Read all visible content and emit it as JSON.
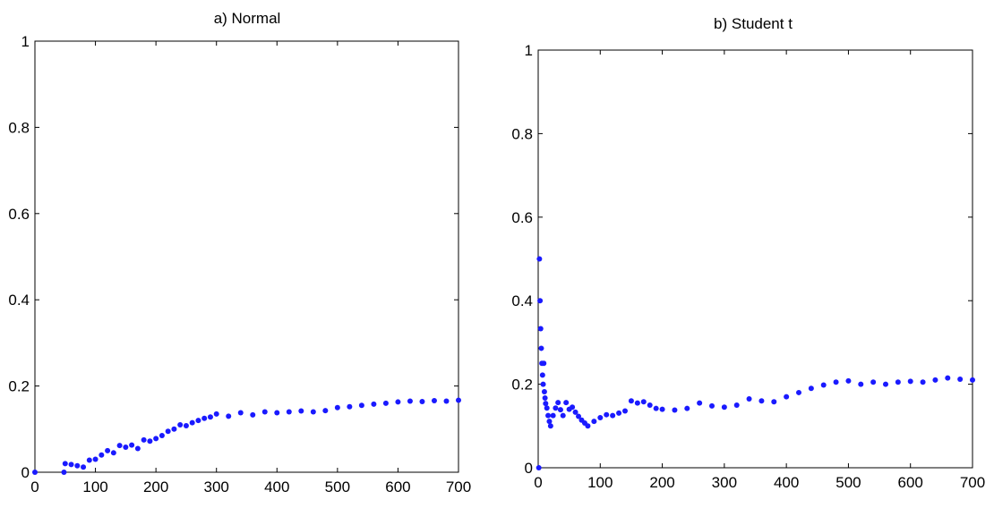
{
  "chart_data": [
    {
      "type": "scatter",
      "title": "a) Normal",
      "xlabel": "",
      "ylabel": "",
      "xlim": [
        0,
        700
      ],
      "ylim": [
        0,
        1
      ],
      "xticks": [
        0,
        100,
        200,
        300,
        400,
        500,
        600,
        700
      ],
      "yticks": [
        0,
        0.2,
        0.4,
        0.6,
        0.8,
        1
      ],
      "xtick_labels": [
        "0",
        "100",
        "200",
        "300",
        "400",
        "500",
        "600",
        "700"
      ],
      "ytick_labels": [
        "0",
        "0.2",
        "0.4",
        "0.6",
        "0.8",
        "1"
      ],
      "grid": false,
      "marker_color": "#1a1aff",
      "series": [
        {
          "x": [
            0,
            48,
            50,
            60,
            70,
            80,
            90,
            100,
            110,
            120,
            130,
            140,
            150,
            160,
            170,
            180,
            190,
            200,
            210,
            220,
            230,
            240,
            250,
            260,
            270,
            280,
            290,
            300,
            320,
            340,
            360,
            380,
            400,
            420,
            440,
            460,
            480,
            500,
            520,
            540,
            560,
            580,
            600,
            620,
            640,
            660,
            680,
            700
          ],
          "y": [
            0,
            0,
            0.02,
            0.018,
            0.015,
            0.012,
            0.028,
            0.03,
            0.04,
            0.05,
            0.045,
            0.062,
            0.058,
            0.063,
            0.055,
            0.075,
            0.072,
            0.078,
            0.085,
            0.095,
            0.1,
            0.11,
            0.108,
            0.115,
            0.12,
            0.125,
            0.128,
            0.135,
            0.13,
            0.138,
            0.133,
            0.14,
            0.138,
            0.14,
            0.142,
            0.14,
            0.143,
            0.15,
            0.152,
            0.155,
            0.158,
            0.16,
            0.163,
            0.165,
            0.164,
            0.166,
            0.165,
            0.167
          ]
        }
      ]
    },
    {
      "type": "scatter",
      "title": "b) Student t",
      "xlabel": "",
      "ylabel": "",
      "xlim": [
        0,
        700
      ],
      "ylim": [
        0,
        1
      ],
      "xticks": [
        0,
        100,
        200,
        300,
        400,
        500,
        600,
        700
      ],
      "yticks": [
        0,
        0.2,
        0.4,
        0.6,
        0.8,
        1
      ],
      "xtick_labels": [
        "0",
        "100",
        "200",
        "300",
        "400",
        "500",
        "600",
        "700"
      ],
      "ytick_labels": [
        "0",
        "0.2",
        "0.4",
        "0.6",
        "0.8",
        "1"
      ],
      "grid": false,
      "marker_color": "#1a1aff",
      "series": [
        {
          "x": [
            1,
            2,
            3,
            4,
            5,
            6,
            7,
            8,
            9,
            10,
            11,
            12,
            14,
            16,
            18,
            20,
            24,
            28,
            32,
            36,
            40,
            45,
            50,
            55,
            60,
            65,
            70,
            75,
            80,
            90,
            100,
            110,
            120,
            130,
            140,
            150,
            160,
            170,
            180,
            190,
            200,
            220,
            240,
            260,
            280,
            300,
            320,
            340,
            360,
            380,
            400,
            420,
            440,
            460,
            480,
            500,
            520,
            540,
            560,
            580,
            600,
            620,
            640,
            660,
            680,
            700
          ],
          "y": [
            0,
            0.5,
            0.4,
            0.333,
            0.286,
            0.25,
            0.222,
            0.2,
            0.25,
            0.182,
            0.167,
            0.154,
            0.143,
            0.125,
            0.111,
            0.1,
            0.125,
            0.143,
            0.156,
            0.139,
            0.125,
            0.156,
            0.14,
            0.145,
            0.133,
            0.123,
            0.114,
            0.107,
            0.1,
            0.111,
            0.12,
            0.127,
            0.125,
            0.131,
            0.136,
            0.16,
            0.155,
            0.158,
            0.15,
            0.142,
            0.14,
            0.138,
            0.142,
            0.155,
            0.148,
            0.145,
            0.15,
            0.165,
            0.16,
            0.158,
            0.17,
            0.18,
            0.19,
            0.198,
            0.205,
            0.208,
            0.2,
            0.205,
            0.2,
            0.205,
            0.207,
            0.205,
            0.21,
            0.215,
            0.212,
            0.21
          ]
        }
      ]
    }
  ]
}
